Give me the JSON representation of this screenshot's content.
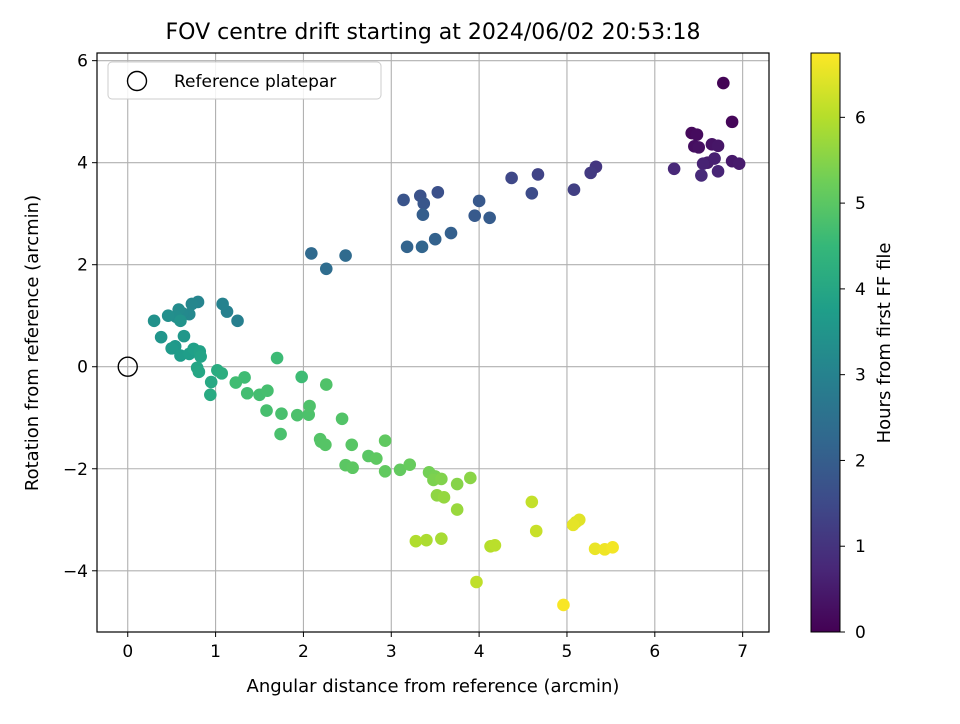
{
  "chart_data": {
    "type": "scatter",
    "title": "FOV centre drift starting at 2024/06/02 20:53:18",
    "xlabel": "Angular distance from reference (arcmin)",
    "ylabel": "Rotation from reference (arcmin)",
    "xlim": [
      -0.35,
      7.3
    ],
    "ylim": [
      -5.2,
      6.15
    ],
    "xticks": [
      0,
      1,
      2,
      3,
      4,
      5,
      6,
      7
    ],
    "yticks": [
      -4,
      -2,
      0,
      2,
      4,
      6
    ],
    "grid": true,
    "legend": {
      "entries": [
        "Reference platepar"
      ],
      "placement": "upper-left"
    },
    "reference_point": {
      "x": 0,
      "y": 0
    },
    "colorbar": {
      "label": "Hours from first FF file",
      "colormap": "viridis",
      "range": [
        0,
        6.75
      ],
      "ticks": [
        0,
        1,
        2,
        3,
        4,
        5,
        6
      ]
    },
    "colors": {
      "viridis": [
        "#440154",
        "#482878",
        "#3e4a89",
        "#31688e",
        "#26828e",
        "#1f9e89",
        "#35b779",
        "#6ece58",
        "#b5de2b",
        "#fde725"
      ]
    },
    "points": [
      [
        6.78,
        5.56,
        0.05
      ],
      [
        6.88,
        4.8,
        0.1
      ],
      [
        6.42,
        4.58,
        0.15
      ],
      [
        6.48,
        4.55,
        0.2
      ],
      [
        6.45,
        4.32,
        0.25
      ],
      [
        6.5,
        4.3,
        0.3
      ],
      [
        6.65,
        4.36,
        0.35
      ],
      [
        6.72,
        4.33,
        0.4
      ],
      [
        6.88,
        4.03,
        0.45
      ],
      [
        6.96,
        3.98,
        0.5
      ],
      [
        6.6,
        4.0,
        0.55
      ],
      [
        6.68,
        4.08,
        0.6
      ],
      [
        6.55,
        3.98,
        0.65
      ],
      [
        6.72,
        3.83,
        0.7
      ],
      [
        6.22,
        3.88,
        0.75
      ],
      [
        6.53,
        3.75,
        0.8
      ],
      [
        5.33,
        3.92,
        1.05
      ],
      [
        5.27,
        3.8,
        1.15
      ],
      [
        5.08,
        3.47,
        1.25
      ],
      [
        4.67,
        3.77,
        1.35
      ],
      [
        4.37,
        3.7,
        1.45
      ],
      [
        4.6,
        3.4,
        1.55
      ],
      [
        3.53,
        3.42,
        1.65
      ],
      [
        3.33,
        3.35,
        1.7
      ],
      [
        3.14,
        3.27,
        1.75
      ],
      [
        3.37,
        3.2,
        1.8
      ],
      [
        4.0,
        3.25,
        1.85
      ],
      [
        3.95,
        2.96,
        1.9
      ],
      [
        4.12,
        2.92,
        1.95
      ],
      [
        3.36,
        2.98,
        2.0
      ],
      [
        3.68,
        2.62,
        2.05
      ],
      [
        3.5,
        2.5,
        2.1
      ],
      [
        3.18,
        2.35,
        2.15
      ],
      [
        3.35,
        2.35,
        2.2
      ],
      [
        2.09,
        2.22,
        2.3
      ],
      [
        2.48,
        2.18,
        2.35
      ],
      [
        2.26,
        1.92,
        2.4
      ],
      [
        1.25,
        0.9,
        2.9
      ],
      [
        1.13,
        1.08,
        2.95
      ],
      [
        1.08,
        1.23,
        3.0
      ],
      [
        0.8,
        1.27,
        3.05
      ],
      [
        0.73,
        1.23,
        3.1
      ],
      [
        0.7,
        1.03,
        3.15
      ],
      [
        0.62,
        1.05,
        3.2
      ],
      [
        0.58,
        1.12,
        3.25
      ],
      [
        0.55,
        0.98,
        3.3
      ],
      [
        0.46,
        1.0,
        3.35
      ],
      [
        0.3,
        0.9,
        3.4
      ],
      [
        0.6,
        0.9,
        3.45
      ],
      [
        0.38,
        0.58,
        3.5
      ],
      [
        0.64,
        0.6,
        3.55
      ],
      [
        0.54,
        0.4,
        3.6
      ],
      [
        0.5,
        0.36,
        3.65
      ],
      [
        0.6,
        0.22,
        3.7
      ],
      [
        0.7,
        0.25,
        3.75
      ],
      [
        0.75,
        0.35,
        3.8
      ],
      [
        0.82,
        0.3,
        3.85
      ],
      [
        0.83,
        0.2,
        3.9
      ],
      [
        0.79,
        -0.02,
        3.95
      ],
      [
        0.81,
        -0.1,
        4.0
      ],
      [
        0.95,
        -0.3,
        4.05
      ],
      [
        0.94,
        -0.55,
        4.1
      ],
      [
        1.02,
        -0.07,
        4.15
      ],
      [
        1.07,
        -0.13,
        4.2
      ],
      [
        1.7,
        0.17,
        4.6
      ],
      [
        1.98,
        -0.2,
        4.62
      ],
      [
        1.33,
        -0.21,
        4.64
      ],
      [
        1.23,
        -0.31,
        4.66
      ],
      [
        1.36,
        -0.52,
        4.68
      ],
      [
        1.5,
        -0.55,
        4.7
      ],
      [
        1.59,
        -0.47,
        4.72
      ],
      [
        1.58,
        -0.86,
        4.74
      ],
      [
        1.75,
        -0.92,
        4.76
      ],
      [
        1.74,
        -1.32,
        4.78
      ],
      [
        1.93,
        -0.95,
        4.8
      ],
      [
        2.06,
        -0.94,
        4.82
      ],
      [
        2.07,
        -0.77,
        4.84
      ],
      [
        2.26,
        -0.35,
        4.86
      ],
      [
        2.44,
        -1.02,
        4.88
      ],
      [
        2.19,
        -1.42,
        4.9
      ],
      [
        2.2,
        -1.47,
        4.92
      ],
      [
        2.25,
        -1.53,
        4.94
      ],
      [
        2.55,
        -1.53,
        4.96
      ],
      [
        2.74,
        -1.75,
        4.98
      ],
      [
        2.48,
        -1.93,
        5.0
      ],
      [
        2.56,
        -1.98,
        5.02
      ],
      [
        2.83,
        -1.8,
        5.04
      ],
      [
        2.93,
        -1.45,
        5.06
      ],
      [
        2.93,
        -2.05,
        5.08
      ],
      [
        3.1,
        -2.02,
        5.1
      ],
      [
        3.21,
        -1.92,
        5.15
      ],
      [
        3.43,
        -2.07,
        5.3
      ],
      [
        3.5,
        -2.15,
        5.35
      ],
      [
        3.48,
        -2.22,
        5.4
      ],
      [
        3.57,
        -2.2,
        5.45
      ],
      [
        3.75,
        -2.3,
        5.5
      ],
      [
        3.9,
        -2.18,
        5.55
      ],
      [
        3.52,
        -2.52,
        5.6
      ],
      [
        3.6,
        -2.56,
        5.65
      ],
      [
        3.75,
        -2.8,
        5.7
      ],
      [
        3.57,
        -3.37,
        5.85
      ],
      [
        3.4,
        -3.4,
        5.9
      ],
      [
        3.28,
        -3.42,
        5.95
      ],
      [
        4.13,
        -3.52,
        6.0
      ],
      [
        4.18,
        -3.5,
        6.05
      ],
      [
        3.97,
        -4.22,
        6.1
      ],
      [
        4.6,
        -2.65,
        6.15
      ],
      [
        4.65,
        -3.22,
        6.2
      ],
      [
        5.1,
        -3.05,
        6.4
      ],
      [
        5.14,
        -3.0,
        6.45
      ],
      [
        5.07,
        -3.1,
        6.5
      ],
      [
        5.32,
        -3.57,
        6.55
      ],
      [
        5.43,
        -3.58,
        6.6
      ],
      [
        5.52,
        -3.54,
        6.65
      ],
      [
        4.96,
        -4.67,
        6.7
      ]
    ]
  }
}
